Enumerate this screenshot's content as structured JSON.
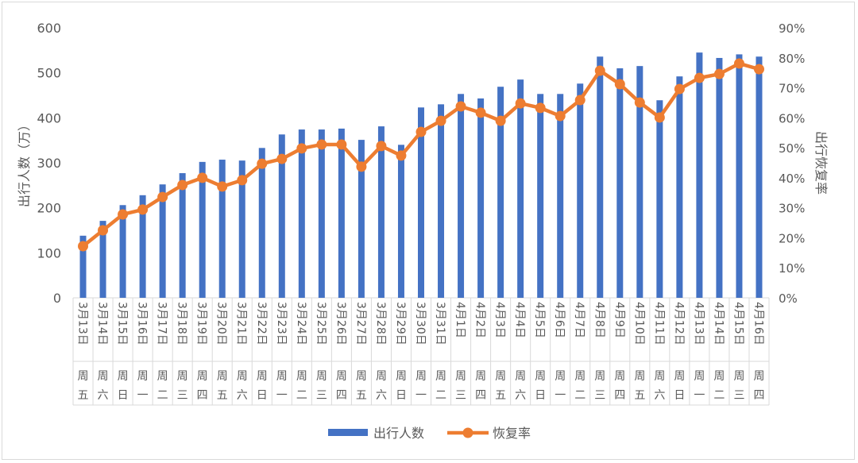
{
  "chart_data": {
    "type": "bar+line",
    "categories": [
      "3月13日",
      "3月14日",
      "3月15日",
      "3月16日",
      "3月17日",
      "3月18日",
      "3月19日",
      "3月20日",
      "3月21日",
      "3月22日",
      "3月23日",
      "3月24日",
      "3月25日",
      "3月26日",
      "3月27日",
      "3月28日",
      "3月29日",
      "3月30日",
      "3月31日",
      "4月1日",
      "4月2日",
      "4月3日",
      "4月4日",
      "4月5日",
      "4月6日",
      "4月7日",
      "4月8日",
      "4月9日",
      "4月10日",
      "4月11日",
      "4月12日",
      "4月13日",
      "4月14日",
      "4月15日",
      "4月16日"
    ],
    "weekdays": [
      "周五",
      "周六",
      "周日",
      "周一",
      "周二",
      "周三",
      "周四",
      "周五",
      "周六",
      "周日",
      "周一",
      "周二",
      "周三",
      "周四",
      "周五",
      "周六",
      "周日",
      "周一",
      "周二",
      "周三",
      "周四",
      "周五",
      "周六",
      "周日",
      "周一",
      "周二",
      "周三",
      "周四",
      "周五",
      "周六",
      "周日",
      "周一",
      "周二",
      "周三",
      "周四"
    ],
    "series": [
      {
        "name": "出行人数",
        "type": "bar",
        "axis": "left",
        "color": "#4472c4",
        "values": [
          138,
          171,
          206,
          228,
          252,
          277,
          302,
          307,
          305,
          333,
          363,
          374,
          374,
          376,
          351,
          381,
          340,
          423,
          430,
          453,
          443,
          469,
          485,
          453,
          453,
          476,
          536,
          510,
          515,
          439,
          492,
          545,
          533,
          541,
          536
        ]
      },
      {
        "name": "恢复率",
        "type": "line",
        "axis": "right",
        "color": "#ed7d31",
        "values": [
          17.2,
          22.5,
          27.8,
          29.4,
          33.6,
          37.6,
          40.0,
          37.1,
          39.2,
          44.7,
          46.3,
          49.8,
          51.1,
          51.1,
          43.7,
          50.6,
          47.4,
          55.3,
          59.0,
          63.8,
          61.7,
          59.0,
          64.8,
          63.3,
          60.6,
          65.9,
          75.7,
          71.2,
          65.1,
          60.1,
          69.6,
          73.3,
          74.6,
          78.1,
          76.2
        ]
      }
    ],
    "ylabel": "出行人数（万）",
    "y2label": "出行恢复率",
    "ylim": [
      0,
      600
    ],
    "y2lim": [
      0,
      90
    ],
    "yticks": [
      "0",
      "100",
      "200",
      "300",
      "400",
      "500",
      "600"
    ],
    "y2ticks": [
      "0%",
      "10%",
      "20%",
      "30%",
      "40%",
      "50%",
      "60%",
      "70%",
      "80%",
      "90%"
    ],
    "grid": false,
    "legend_position": "bottom"
  }
}
